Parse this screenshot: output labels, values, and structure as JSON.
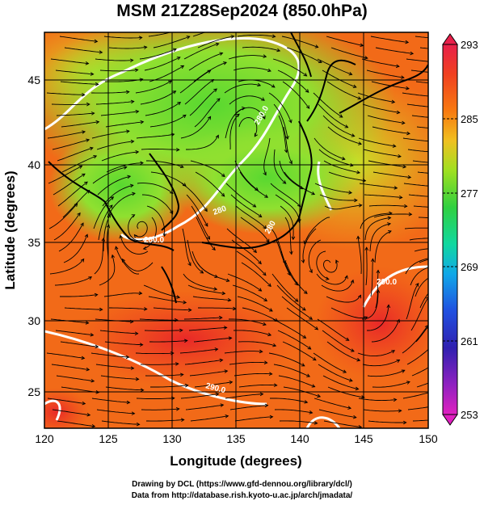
{
  "title": "MSM 21Z28Sep2024 (850.0hPa)",
  "xlabel": "Longitude (degrees)",
  "ylabel": "Latitude  (degrees)",
  "lon_ticks": [
    "120",
    "125",
    "130",
    "135",
    "140",
    "145",
    "150"
  ],
  "lat_ticks": [
    "45",
    "40",
    "35",
    "30",
    "25"
  ],
  "lon_range": [
    120,
    150
  ],
  "lat_range": [
    22.4,
    47.6
  ],
  "colorbar": {
    "ticks": [
      "293",
      "285",
      "277",
      "269",
      "261",
      "253"
    ],
    "range": [
      253,
      293
    ],
    "colors": [
      "#e8204a",
      "#f04020",
      "#f87a10",
      "#f0c020",
      "#a0e020",
      "#30d040",
      "#10d8a0",
      "#10a8e8",
      "#2050e0",
      "#3020b0",
      "#9020c0",
      "#e020c0"
    ]
  },
  "contour_labels": [
    "280.0",
    "280.0",
    "280",
    "280",
    "290.0",
    "290.0"
  ],
  "credits": {
    "line1": "Drawing by DCL (https://www.gfd-dennou.org/library/dcl/)",
    "line2": "Data from http://database.rish.kyoto-u.ac.jp/arch/jmadata/"
  }
}
